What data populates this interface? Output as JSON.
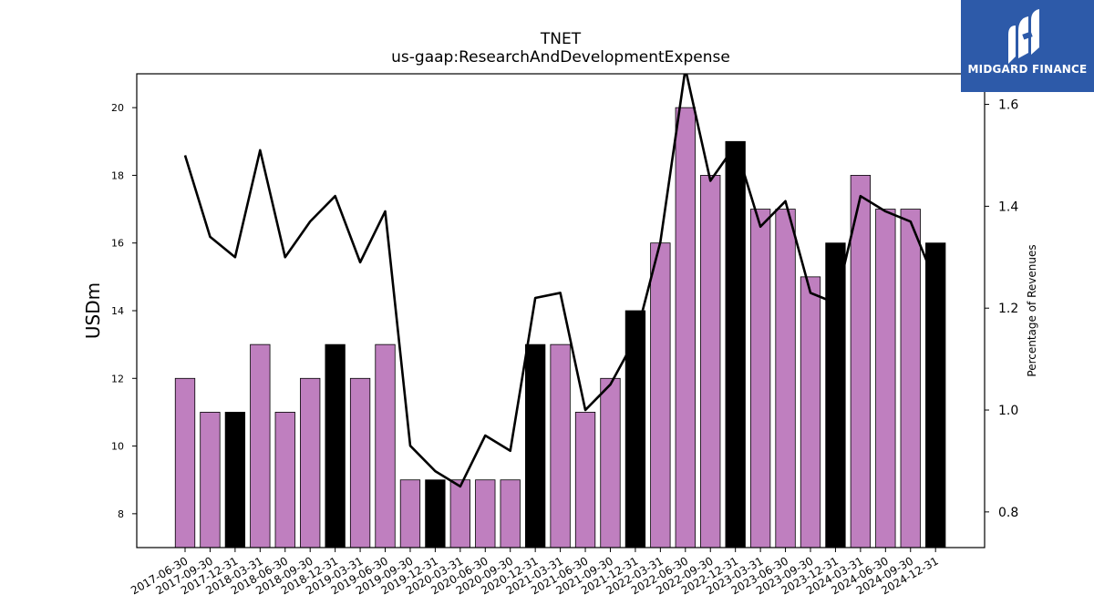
{
  "header": {
    "title": "TNET",
    "subtitle": "us-gaap:ResearchAndDevelopmentExpense"
  },
  "logo": {
    "text": "MIDGARD FINANCE",
    "background": "#2d5aa9",
    "icon": "midgard-logo-icon"
  },
  "chart_data": {
    "type": "bar",
    "title": "TNET",
    "subtitle": "us-gaap:ResearchAndDevelopmentExpense",
    "ylabel": "USDm",
    "y2label": "Percentage of Revenues",
    "ylim": [
      7,
      21
    ],
    "y2lim": [
      0.73,
      1.66
    ],
    "yticks": [
      8,
      10,
      12,
      14,
      16,
      18,
      20
    ],
    "y2ticks": [
      "0.8",
      "1.0",
      "1.2",
      "1.4",
      "1.6"
    ],
    "grid": false,
    "colors": {
      "quarter": "#bf7fbf",
      "year_end": "#000000",
      "line": "#000000"
    },
    "categories": [
      "2017-06-30",
      "2017-09-30",
      "2017-12-31",
      "2018-03-31",
      "2018-06-30",
      "2018-09-30",
      "2018-12-31",
      "2019-03-31",
      "2019-06-30",
      "2019-09-30",
      "2019-12-31",
      "2020-03-31",
      "2020-06-30",
      "2020-09-30",
      "2020-12-31",
      "2021-03-31",
      "2021-06-30",
      "2021-09-30",
      "2021-12-31",
      "2022-03-31",
      "2022-06-30",
      "2022-09-30",
      "2022-12-31",
      "2023-03-31",
      "2023-06-30",
      "2023-09-30",
      "2023-12-31",
      "2024-03-31",
      "2024-06-30",
      "2024-09-30",
      "2024-12-31"
    ],
    "series": [
      {
        "kind": "bar",
        "axis": "left",
        "values": [
          12,
          11,
          11,
          13,
          11,
          12,
          13,
          12,
          13,
          9,
          9,
          9,
          9,
          9,
          13,
          13,
          11,
          12,
          14,
          16,
          20,
          18,
          19,
          17,
          17,
          15,
          16,
          18,
          17,
          17,
          16
        ],
        "highlight": [
          false,
          false,
          true,
          false,
          false,
          false,
          true,
          false,
          false,
          false,
          true,
          false,
          false,
          false,
          true,
          false,
          false,
          false,
          true,
          false,
          false,
          false,
          true,
          false,
          false,
          false,
          true,
          false,
          false,
          false,
          true
        ]
      },
      {
        "kind": "line",
        "axis": "right",
        "values": [
          1.5,
          1.34,
          1.3,
          1.51,
          1.3,
          1.37,
          1.42,
          1.29,
          1.39,
          0.93,
          0.88,
          0.85,
          0.95,
          0.92,
          1.22,
          1.23,
          1.0,
          1.05,
          1.14,
          1.33,
          1.67,
          1.45,
          1.52,
          1.36,
          1.41,
          1.23,
          1.21,
          1.42,
          1.39,
          1.37,
          1.25
        ]
      }
    ]
  }
}
